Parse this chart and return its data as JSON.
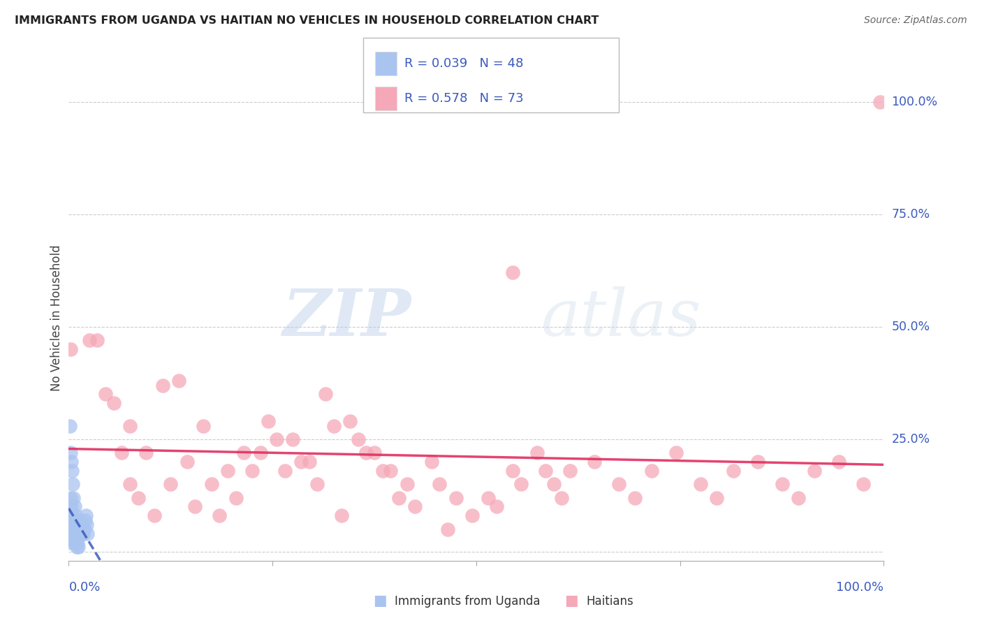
{
  "title": "IMMIGRANTS FROM UGANDA VS HAITIAN NO VEHICLES IN HOUSEHOLD CORRELATION CHART",
  "source": "Source: ZipAtlas.com",
  "ylabel": "No Vehicles in Household",
  "legend_label_blue": "Immigrants from Uganda",
  "legend_label_pink": "Haitians",
  "blue_color": "#aac4f0",
  "pink_color": "#f5a8b8",
  "blue_line_color": "#3a5abf",
  "pink_line_color": "#e03060",
  "blue_scatter_x": [
    0.002,
    0.003,
    0.004,
    0.005,
    0.006,
    0.007,
    0.008,
    0.009,
    0.01,
    0.011,
    0.012,
    0.013,
    0.014,
    0.015,
    0.016,
    0.017,
    0.018,
    0.019,
    0.02,
    0.021,
    0.022,
    0.023,
    0.001,
    0.002,
    0.003,
    0.004,
    0.005,
    0.006,
    0.007,
    0.008,
    0.009,
    0.01,
    0.011,
    0.012,
    0.001,
    0.002,
    0.003,
    0.004,
    0.005,
    0.006,
    0.007,
    0.001,
    0.002,
    0.003,
    0.004,
    0.001,
    0.002,
    0.003
  ],
  "blue_scatter_y": [
    0.22,
    0.2,
    0.18,
    0.15,
    0.12,
    0.1,
    0.08,
    0.07,
    0.06,
    0.05,
    0.04,
    0.06,
    0.07,
    0.05,
    0.06,
    0.04,
    0.04,
    0.05,
    0.07,
    0.08,
    0.06,
    0.04,
    0.1,
    0.08,
    0.06,
    0.05,
    0.04,
    0.03,
    0.02,
    0.02,
    0.02,
    0.01,
    0.02,
    0.01,
    0.28,
    0.12,
    0.1,
    0.08,
    0.07,
    0.06,
    0.05,
    0.08,
    0.06,
    0.05,
    0.04,
    0.04,
    0.03,
    0.02
  ],
  "pink_scatter_x": [
    0.002,
    0.035,
    0.055,
    0.075,
    0.095,
    0.115,
    0.145,
    0.175,
    0.195,
    0.215,
    0.245,
    0.275,
    0.295,
    0.315,
    0.345,
    0.375,
    0.395,
    0.415,
    0.445,
    0.475,
    0.495,
    0.515,
    0.545,
    0.575,
    0.595,
    0.615,
    0.645,
    0.675,
    0.695,
    0.715,
    0.745,
    0.775,
    0.795,
    0.815,
    0.845,
    0.875,
    0.895,
    0.915,
    0.945,
    0.975,
    0.025,
    0.045,
    0.065,
    0.085,
    0.105,
    0.125,
    0.155,
    0.185,
    0.205,
    0.225,
    0.255,
    0.285,
    0.305,
    0.325,
    0.355,
    0.385,
    0.405,
    0.425,
    0.455,
    0.465,
    0.525,
    0.555,
    0.585,
    0.605,
    0.545,
    0.075,
    0.135,
    0.165,
    0.235,
    0.265,
    0.335,
    0.365,
    0.995
  ],
  "pink_scatter_y": [
    0.45,
    0.47,
    0.33,
    0.28,
    0.22,
    0.37,
    0.2,
    0.15,
    0.18,
    0.22,
    0.29,
    0.25,
    0.2,
    0.35,
    0.29,
    0.22,
    0.18,
    0.15,
    0.2,
    0.12,
    0.08,
    0.12,
    0.18,
    0.22,
    0.15,
    0.18,
    0.2,
    0.15,
    0.12,
    0.18,
    0.22,
    0.15,
    0.12,
    0.18,
    0.2,
    0.15,
    0.12,
    0.18,
    0.2,
    0.15,
    0.47,
    0.35,
    0.22,
    0.12,
    0.08,
    0.15,
    0.1,
    0.08,
    0.12,
    0.18,
    0.25,
    0.2,
    0.15,
    0.28,
    0.25,
    0.18,
    0.12,
    0.1,
    0.15,
    0.05,
    0.1,
    0.15,
    0.18,
    0.12,
    0.62,
    0.15,
    0.38,
    0.28,
    0.22,
    0.18,
    0.08,
    0.22,
    1.0
  ],
  "watermark_zip": "ZIP",
  "watermark_atlas": "atlas",
  "background_color": "#ffffff",
  "grid_color": "#cccccc",
  "title_color": "#222222",
  "axis_label_color": "#3a5abf",
  "right_label_color": "#3a5abf"
}
